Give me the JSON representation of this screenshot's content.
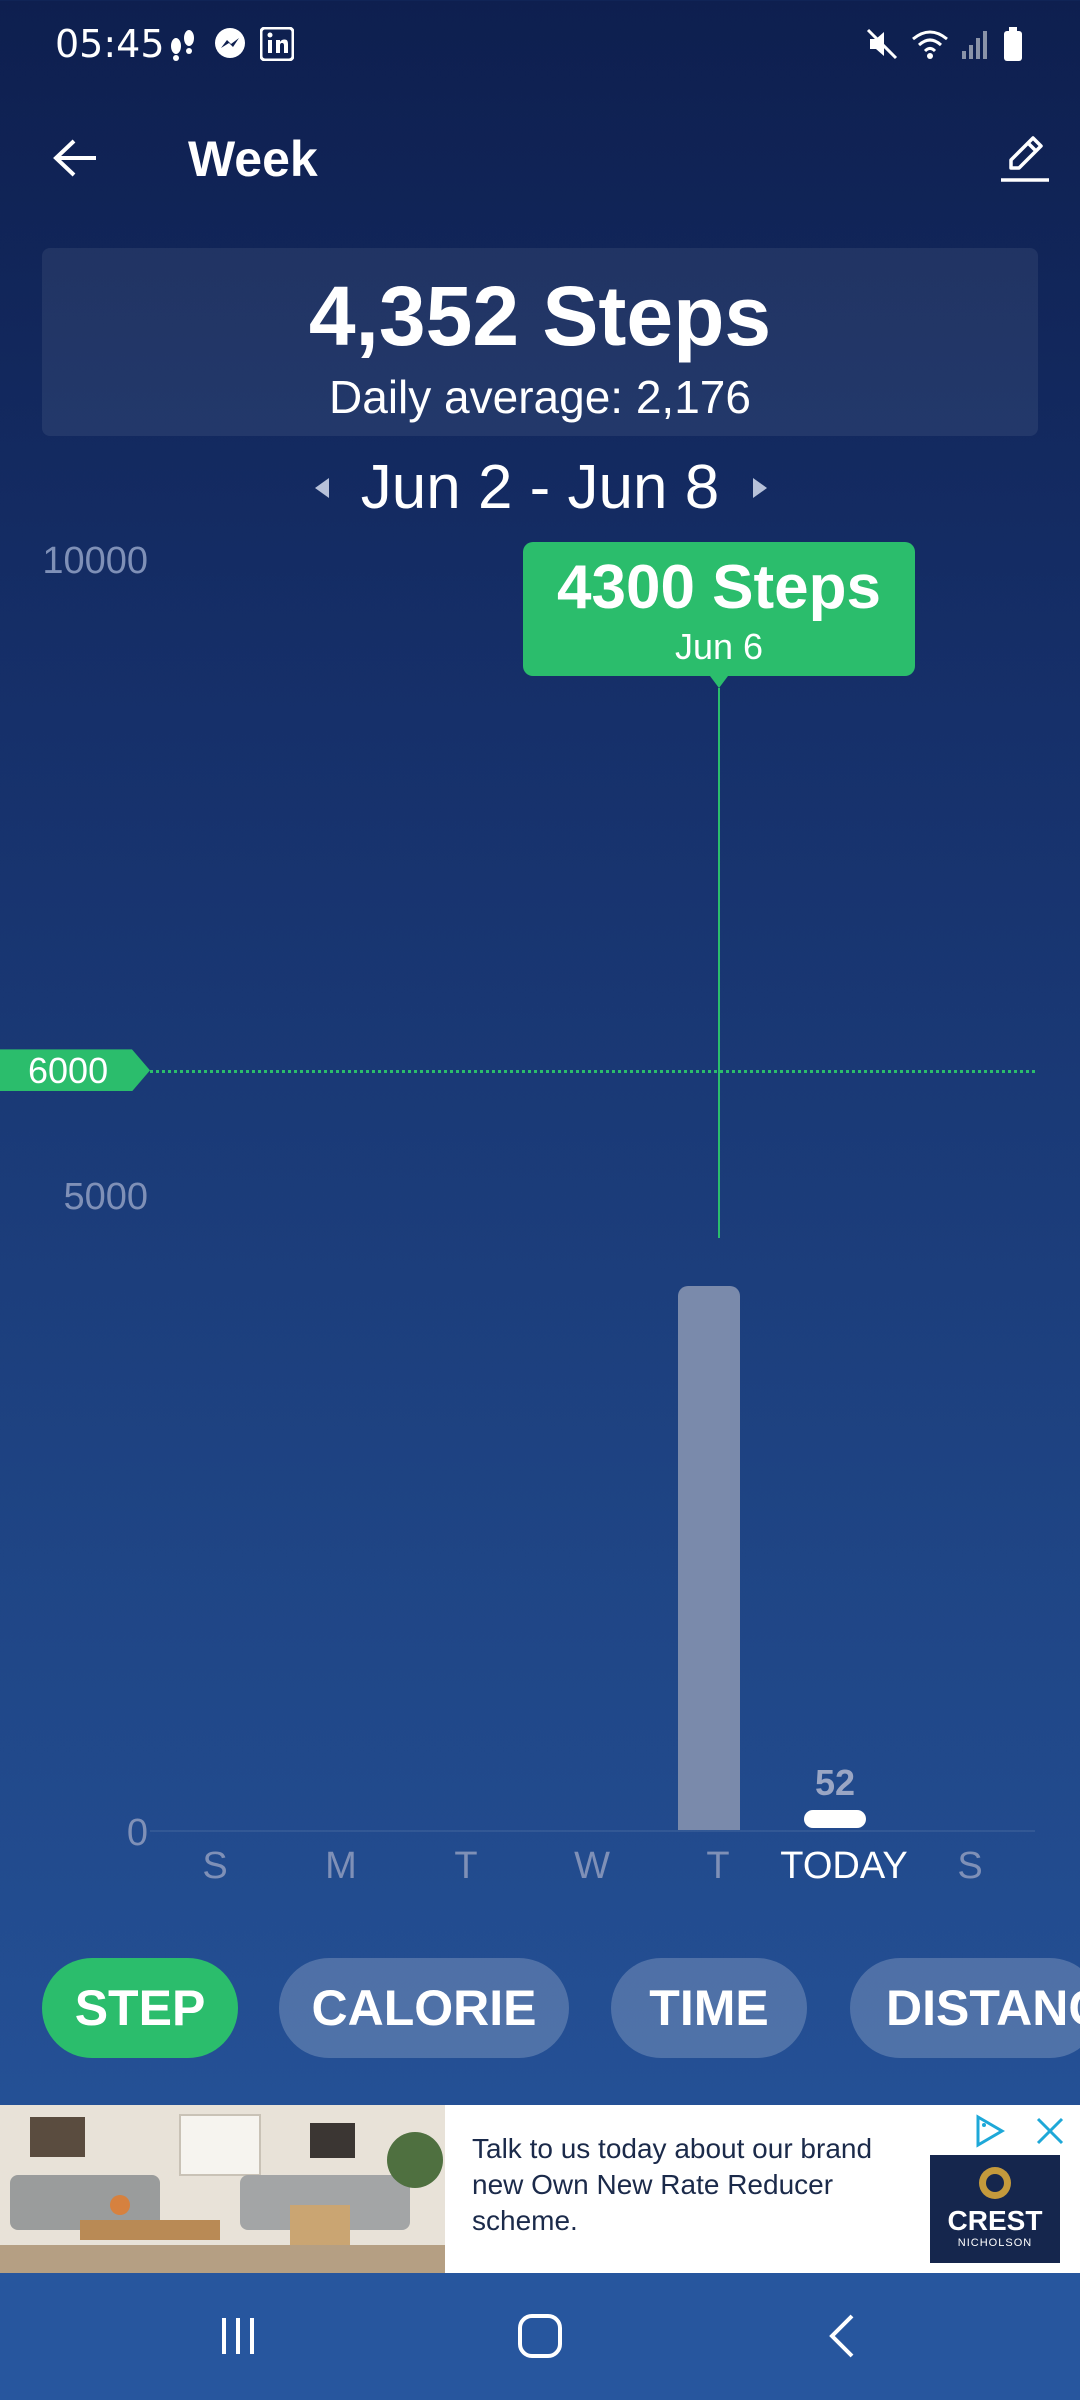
{
  "status_bar": {
    "time": "05:45",
    "left_icons": [
      "footsteps-icon",
      "messenger-icon",
      "linkedin-icon"
    ],
    "right_icons": [
      "mute-icon",
      "wifi-icon",
      "signal-icon",
      "battery-icon"
    ]
  },
  "header": {
    "title": "Week",
    "back_icon": "back-arrow-icon",
    "edit_icon": "pencil-icon"
  },
  "summary": {
    "total_steps": "4,352 Steps",
    "daily_average": "Daily average:  2,176"
  },
  "date_nav": {
    "range": "Jun 2 - Jun 8"
  },
  "chart_data": {
    "type": "bar",
    "categories": [
      "S",
      "M",
      "T",
      "W",
      "T",
      "TODAY",
      "S"
    ],
    "values": [
      0,
      0,
      0,
      0,
      4300,
      52,
      0
    ],
    "y_ticks": [
      "10000",
      "5000",
      "0"
    ],
    "ylim": [
      0,
      10000
    ],
    "goal": {
      "value": 6000,
      "label": "6000"
    },
    "selected": {
      "value_label": "4300 Steps",
      "date_label": "Jun 6",
      "index": 4
    },
    "bar_labels": [
      {
        "index": 5,
        "text": "52"
      }
    ],
    "highlight_category_index": 5
  },
  "metrics": {
    "tabs": [
      {
        "label": "STEP",
        "active": true
      },
      {
        "label": "CALORIE",
        "active": false
      },
      {
        "label": "TIME",
        "active": false
      },
      {
        "label": "DISTANC",
        "active": false
      }
    ]
  },
  "ad": {
    "text": "Talk to us today about our brand new Own New Rate Reducer scheme.",
    "logo_name": "CREST",
    "logo_sub": "NICHOLSON"
  },
  "colors": {
    "accent_green": "#2bbd6c",
    "bar_gray": "#7a8aab",
    "bg_top": "#0e1f4f",
    "bg_bottom": "#27569e"
  }
}
